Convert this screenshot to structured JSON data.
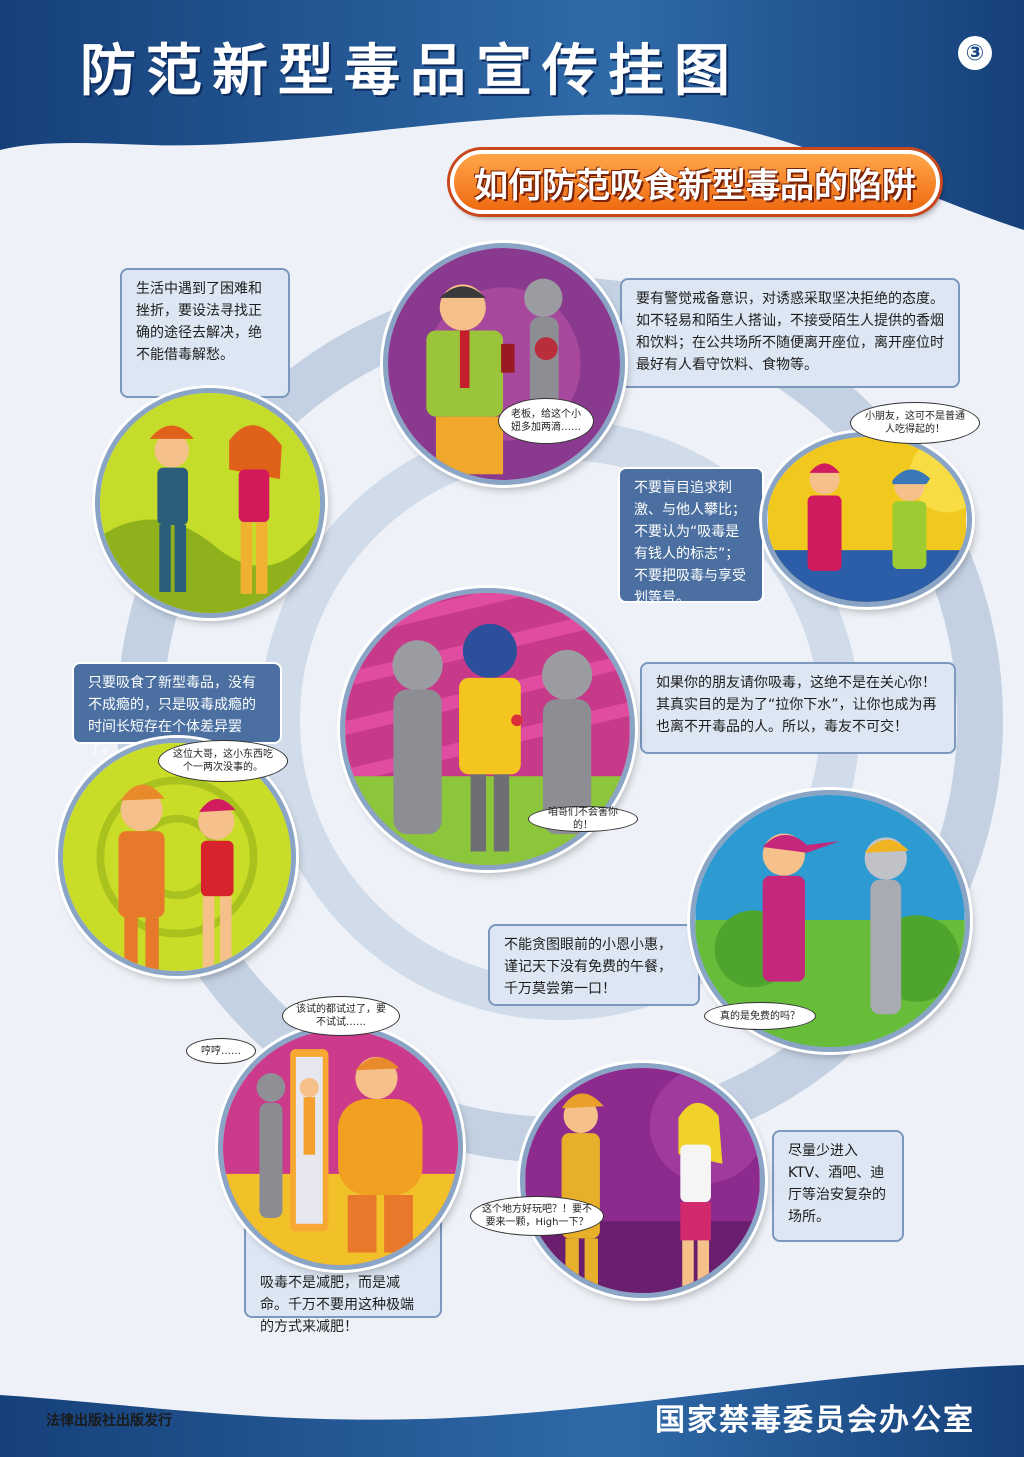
{
  "header": {
    "title": "防范新型毒品宣传挂图",
    "page_number": "③"
  },
  "subtitle": "如何防范吸食新型毒品的陷阱",
  "colors": {
    "header_blue": "#1f4f8c",
    "banner_orange": "#f07a1f",
    "panel_light": "#dde7f3",
    "panel_dark": "#4a6fa0"
  },
  "panels": {
    "p1": "生活中遇到了困难和挫折，要设法寻找正确的途径去解决，绝不能借毒解愁。",
    "p2": "要有警觉戒备意识，对诱惑采取坚决拒绝的态度。如不轻易和陌生人搭讪，不接受陌生人提供的香烟和饮料；在公共场所不随便离开座位，离开座位时最好有人看守饮料、食物等。",
    "p3": "不要盲目追求刺激、与他人攀比；不要认为“吸毒是有钱人的标志”；不要把吸毒与享受划等号。",
    "p4": "只要吸食了新型毒品，没有不成瘾的，只是吸毒成瘾的时间长短存在个体差异罢了。",
    "p5": "如果你的朋友请你吸毒，这绝不是在关心你！其真实目的是为了“拉你下水”，让你也成为再也离不开毒品的人。所以，毒友不可交！",
    "p6": "不能贪图眼前的小恩小惠，谨记天下没有免费的午餐，千万莫尝第一口！",
    "p7": "吸毒不是减肥，而是减命。千万不要用这种极端的方式来减肥！",
    "p8": "尽量少进入KTV、酒吧、迪厅等治安复杂的场所。"
  },
  "bubbles": {
    "b1": "老板，给这个小妞多加两滴……",
    "b2": "小朋友，这可不是普通人吃得起的！",
    "b3": "这位大哥，这小东西吃个一两次没事的。",
    "b4": "咱哥们不会害你的！",
    "b5": "真的是免费的吗？",
    "b6": "该试的都试过了，要不试试……",
    "b7": "哼哼……",
    "b8": "这个地方好玩吧？！要不要来一颗，High一下？"
  },
  "footer": {
    "publisher": "法律出版社出版发行",
    "issuer": "国家禁毒委员会办公室"
  }
}
